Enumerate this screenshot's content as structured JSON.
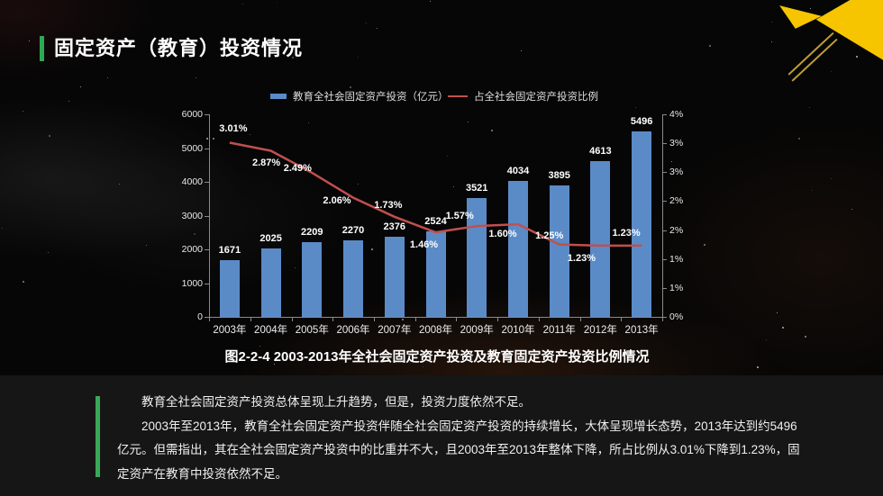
{
  "header": {
    "title": "固定资产（教育）投资情况"
  },
  "chart_data": {
    "type": "bar+line",
    "categories": [
      "2003年",
      "2004年",
      "2005年",
      "2006年",
      "2007年",
      "2008年",
      "2009年",
      "2010年",
      "2011年",
      "2012年",
      "2013年"
    ],
    "series": [
      {
        "name": "教育全社会固定资产投资（亿元）",
        "type": "bar",
        "axis": "left",
        "color": "#5B8BC7",
        "values": [
          1671,
          2025,
          2209,
          2270,
          2376,
          2524,
          3521,
          4034,
          3895,
          4613,
          5496
        ]
      },
      {
        "name": "占全社会固定资产投资比例",
        "type": "line",
        "axis": "right",
        "color": "#C0504D",
        "values": [
          3.01,
          2.87,
          2.49,
          2.06,
          1.73,
          1.46,
          1.57,
          1.6,
          1.25,
          1.23,
          1.23
        ],
        "point_labels": [
          "3.01%",
          "2.87%",
          "2.49%",
          "2.06%",
          "1.73%",
          "1.46%",
          "1.57%",
          "1.60%",
          "1.25%",
          "1.23%",
          "1.23%"
        ]
      }
    ],
    "left_axis": {
      "min": 0,
      "max": 6000,
      "tick_labels": [
        "0",
        "1000",
        "2000",
        "3000",
        "4000",
        "5000",
        "6000"
      ]
    },
    "right_axis": {
      "min": 0,
      "max": 3.5,
      "tick_labels": [
        "0%",
        "1%",
        "1%",
        "2%",
        "2%",
        "3%",
        "3%",
        "4%"
      ]
    },
    "legend_position": "top",
    "grid": false,
    "title": "",
    "caption": "图2-2-4 2003-2013年全社会固定资产投资及教育固定资产投资比例情况"
  },
  "body": {
    "paragraph1": "教育全社会固定资产投资总体呈现上升趋势，但是，投资力度依然不足。",
    "paragraph2": "2003年至2013年，教育全社会固定资产投资伴随全社会固定资产投资的持续增长，大体呈现增长态势，2013年达到约5496亿元。但需指出，其在全社会固定资产投资中的比重并不大，且2003年至2013年整体下降，所占比例从3.01%下降到1.23%，固定资产在教育中投资依然不足。"
  },
  "colors": {
    "accent_green": "#2FA852",
    "decor_yellow": "#F6C500",
    "bar_blue": "#5B8BC7",
    "line_red": "#C0504D",
    "panel_dark": "#161616"
  }
}
